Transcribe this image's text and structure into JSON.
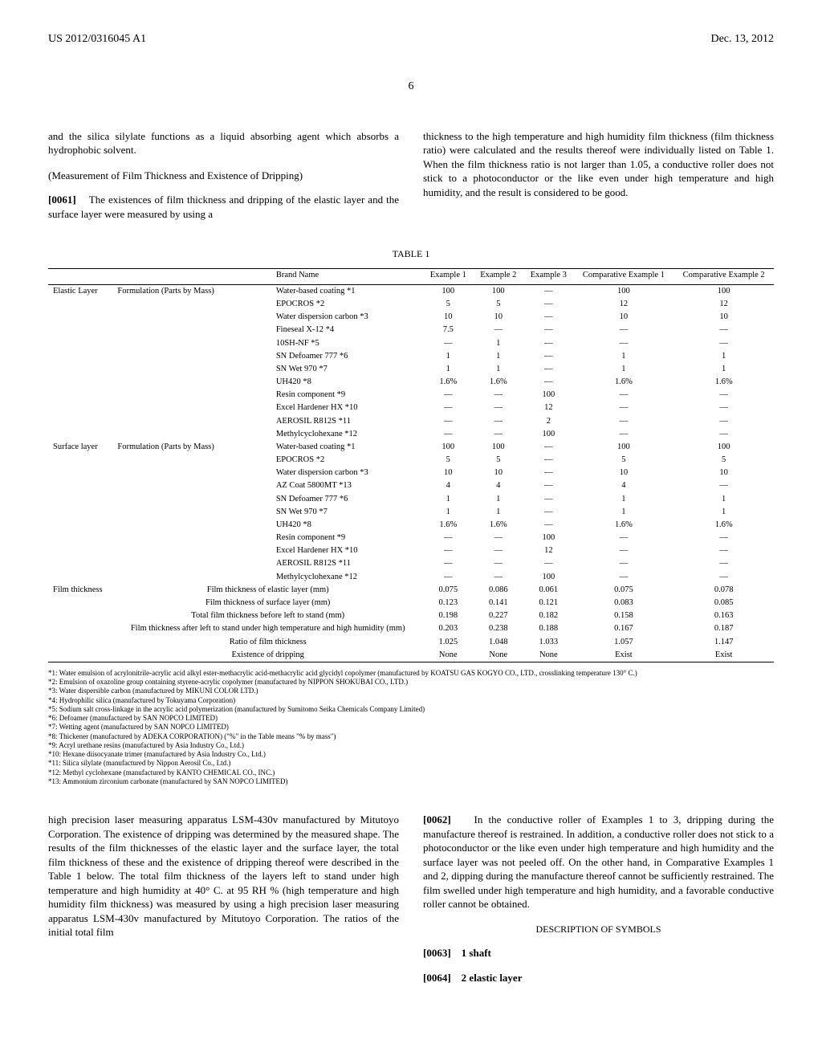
{
  "header": {
    "left": "US 2012/0316045 A1",
    "right": "Dec. 13, 2012"
  },
  "page_number": "6",
  "top_cols": {
    "left": {
      "p1": "and the silica silylate functions as a liquid absorbing agent which absorbs a hydrophobic solvent.",
      "head": "(Measurement of Film Thickness and Existence of Dripping)",
      "p2_label": "[0061]",
      "p2": "The existences of film thickness and dripping of the elastic layer and the surface layer were measured by using a"
    },
    "right": {
      "p1": "thickness to the high temperature and high humidity film thickness (film thickness ratio) were calculated and the results thereof were individually listed on Table 1. When the film thickness ratio is not larger than 1.05, a conductive roller does not stick to a photoconductor or the like even under high temperature and high humidity, and the result is considered to be good."
    }
  },
  "table": {
    "caption": "TABLE 1",
    "headers": [
      "",
      "",
      "Brand Name",
      "Example 1",
      "Example 2",
      "Example 3",
      "Comparative Example 1",
      "Comparative Example 2"
    ],
    "groups": [
      {
        "group_label": "Elastic Layer",
        "sub_label": "Formulation (Parts by Mass)",
        "rows": [
          [
            "Water-based coating *1",
            "100",
            "100",
            "—",
            "100",
            "100"
          ],
          [
            "EPOCROS *2",
            "5",
            "5",
            "—",
            "12",
            "12"
          ],
          [
            "Water dispersion carbon *3",
            "10",
            "10",
            "—",
            "10",
            "10"
          ],
          [
            "Fineseal X-12 *4",
            "7.5",
            "—",
            "—",
            "—",
            "—"
          ],
          [
            "10SH-NF *5",
            "—",
            "1",
            "—",
            "—",
            "—"
          ],
          [
            "SN Defoamer 777 *6",
            "1",
            "1",
            "—",
            "1",
            "1"
          ],
          [
            "SN Wet 970 *7",
            "1",
            "1",
            "—",
            "1",
            "1"
          ],
          [
            "UH420 *8",
            "1.6%",
            "1.6%",
            "—",
            "1.6%",
            "1.6%"
          ],
          [
            "Resin component *9",
            "—",
            "—",
            "100",
            "—",
            "—"
          ],
          [
            "Excel Hardener HX *10",
            "—",
            "—",
            "12",
            "—",
            "—"
          ],
          [
            "AEROSIL R812S *11",
            "—",
            "—",
            "2",
            "—",
            "—"
          ],
          [
            "Methylcyclohexane *12",
            "—",
            "—",
            "100",
            "—",
            "—"
          ]
        ]
      },
      {
        "group_label": "Surface layer",
        "sub_label": "Formulation (Parts by Mass)",
        "rows": [
          [
            "Water-based coating *1",
            "100",
            "100",
            "—",
            "100",
            "100"
          ],
          [
            "EPOCROS *2",
            "5",
            "5",
            "—",
            "5",
            "5"
          ],
          [
            "Water dispersion carbon *3",
            "10",
            "10",
            "—",
            "10",
            "10"
          ],
          [
            "AZ Coat 5800MT *13",
            "4",
            "4",
            "—",
            "4",
            "—"
          ],
          [
            "SN Defoamer 777 *6",
            "1",
            "1",
            "—",
            "1",
            "1"
          ],
          [
            "SN Wet 970 *7",
            "1",
            "1",
            "—",
            "1",
            "1"
          ],
          [
            "UH420 *8",
            "1.6%",
            "1.6%",
            "—",
            "1.6%",
            "1.6%"
          ],
          [
            "Resin component *9",
            "—",
            "—",
            "100",
            "—",
            "—"
          ],
          [
            "Excel Hardener HX *10",
            "—",
            "—",
            "12",
            "—",
            "—"
          ],
          [
            "AEROSIL R812S *11",
            "—",
            "—",
            "—",
            "—",
            "—"
          ],
          [
            "Methylcyclohexane *12",
            "—",
            "—",
            "100",
            "—",
            "—"
          ]
        ]
      },
      {
        "group_label": "Film thickness",
        "sub_label": "",
        "rows2": [
          [
            "Film thickness of elastic layer (mm)",
            "0.075",
            "0.086",
            "0.061",
            "0.075",
            "0.078"
          ],
          [
            "Film thickness of surface layer (mm)",
            "0.123",
            "0.141",
            "0.121",
            "0.083",
            "0.085"
          ],
          [
            "Total film thickness before left to stand (mm)",
            "0.198",
            "0.227",
            "0.182",
            "0.158",
            "0.163"
          ],
          [
            "Film thickness after left to stand under high temperature and high humidity (mm)",
            "0.203",
            "0.238",
            "0.188",
            "0.167",
            "0.187"
          ],
          [
            "Ratio of film thickness",
            "1.025",
            "1.048",
            "1.033",
            "1.057",
            "1.147"
          ],
          [
            "Existence of dripping",
            "None",
            "None",
            "None",
            "Exist",
            "Exist"
          ]
        ]
      }
    ],
    "footnotes": [
      "*1: Water emulsion of acrylonitrile-acrylic acid alkyl ester-methacrylic acid-methacrylic acid glycidyl copolymer (manufactured by KOATSU GAS KOGYO CO., LTD., crosslinking temperature 130° C.)",
      "*2: Emulsion of oxazoline group containing styrene-acrylic copolymer (manufactured by NIPPON SHOKUBAI CO., LTD.)",
      "*3: Water dispersible carbon (manufactured by MIKUNI COLOR LTD.)",
      "*4: Hydrophilic silica (manufactured by Tokuyama Corporation)",
      "*5: Sodium salt cross-linkage in the acrylic acid polymerization (manufactured by Sumitomo Seika Chemicals Company Limited)",
      "*6: Defoamer (manufactured by SAN NOPCO LIMITED)",
      "*7: Wetting agent (manufactured by SAN NOPCO LIMITED)",
      "*8: Thickener (manufactured by ADEKA CORPORATION) (\"%\" in the Table means \"% by mass\")",
      "*9: Acryl urethane resins (manufactured by Asia Industry Co., Ltd.)",
      "*10: Hexane diisocyanate trimer (manufactured by Asia Industry Co., Ltd.)",
      "*11: Silica silylate (manufactured by Nippon Aerosil Co., Ltd.)",
      "*12: Methyl cyclohexane (manufactured by KANTO CHEMICAL CO., INC.)",
      "*13: Ammonium zirconium carbonate (manufactured by SAN NOPCO LIMITED)"
    ]
  },
  "bottom_cols": {
    "left": {
      "p1": "high precision laser measuring apparatus LSM-430v manufactured by Mitutoyo Corporation. The existence of dripping was determined by the measured shape. The results of the film thicknesses of the elastic layer and the surface layer, the total film thickness of these and the existence of dripping thereof were described in the Table 1 below. The total film thickness of the layers left to stand under high temperature and high humidity at 40° C. at 95 RH % (high temperature and high humidity film thickness) was measured by using a high precision laser measuring apparatus LSM-430v manufactured by Mitutoyo Corporation. The ratios of the initial total film"
    },
    "right": {
      "p1_label": "[0062]",
      "p1": "In the conductive roller of Examples 1 to 3, dripping during the manufacture thereof is restrained. In addition, a conductive roller does not stick to a photoconductor or the like even under high temperature and high humidity and the surface layer was not peeled off. On the other hand, in Comparative Examples 1 and 2, dipping during the manufacture thereof cannot be sufficiently restrained. The film swelled under high temperature and high humidity, and a favorable conductive roller cannot be obtained.",
      "symbols_head": "DESCRIPTION OF SYMBOLS",
      "s1_label": "[0063]",
      "s1": "1 shaft",
      "s2_label": "[0064]",
      "s2": "2 elastic layer"
    }
  }
}
